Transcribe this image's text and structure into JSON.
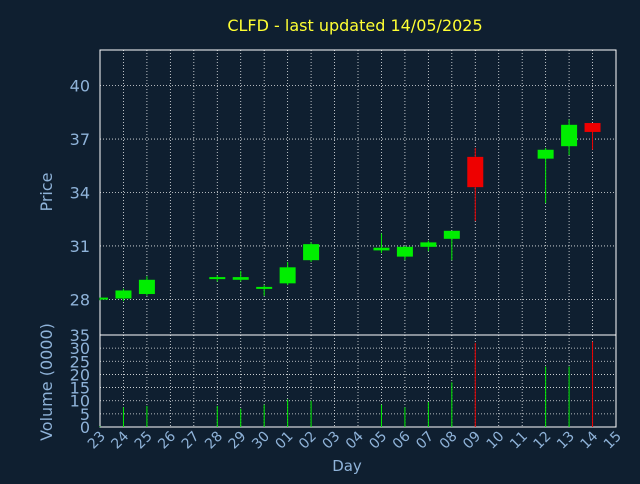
{
  "colors": {
    "background": "#0f1f30",
    "title": "#ffff33",
    "axis_text": "#8fb3d9",
    "axis_title": "#8fb3d9",
    "grid": "#ffffff",
    "up": "#00ee00",
    "down": "#ee0000"
  },
  "chart_data": [
    {
      "type": "candlestick",
      "title": "CLFD - last updated 14/05/2025",
      "ylabel": "Price",
      "ylim": [
        26.0,
        42.0
      ],
      "yticks": [
        28,
        31,
        34,
        37,
        40
      ],
      "grid": true,
      "candles": [
        {
          "day": "23",
          "open": 28.05,
          "high": 28.1,
          "low": 27.95,
          "close": 28.1
        },
        {
          "day": "24",
          "open": 28.05,
          "high": 28.6,
          "low": 27.9,
          "close": 28.5
        },
        {
          "day": "25",
          "open": 28.3,
          "high": 29.3,
          "low": 28.2,
          "close": 29.1
        },
        {
          "day": "28",
          "open": 29.15,
          "high": 29.35,
          "low": 29.0,
          "close": 29.25
        },
        {
          "day": "29",
          "open": 29.1,
          "high": 29.6,
          "low": 29.0,
          "close": 29.25
        },
        {
          "day": "30",
          "open": 28.6,
          "high": 28.8,
          "low": 28.2,
          "close": 28.7
        },
        {
          "day": "01",
          "open": 28.9,
          "high": 30.1,
          "low": 28.8,
          "close": 29.8
        },
        {
          "day": "02",
          "open": 30.2,
          "high": 31.2,
          "low": 30.1,
          "close": 31.1
        },
        {
          "day": "05",
          "open": 30.75,
          "high": 31.7,
          "low": 30.6,
          "close": 30.9
        },
        {
          "day": "06",
          "open": 30.4,
          "high": 31.0,
          "low": 30.2,
          "close": 30.95
        },
        {
          "day": "07",
          "open": 30.95,
          "high": 31.3,
          "low": 30.7,
          "close": 31.2
        },
        {
          "day": "08",
          "open": 31.4,
          "high": 31.8,
          "low": 30.2,
          "close": 31.85
        },
        {
          "day": "09",
          "open": 36.0,
          "high": 36.5,
          "low": 32.4,
          "close": 34.3
        },
        {
          "day": "12",
          "open": 35.9,
          "high": 36.5,
          "low": 33.4,
          "close": 36.4
        },
        {
          "day": "13",
          "open": 36.6,
          "high": 38.1,
          "low": 36.1,
          "close": 37.8
        },
        {
          "day": "14",
          "open": 37.9,
          "high": 37.9,
          "low": 36.4,
          "close": 37.4
        }
      ]
    },
    {
      "type": "bar",
      "ylabel": "Volume (0000)",
      "xlabel": "Day",
      "ylim": [
        0,
        35
      ],
      "yticks": [
        0,
        5,
        10,
        15,
        20,
        25,
        30,
        35
      ],
      "grid": true,
      "categories": [
        "23",
        "24",
        "25",
        "26",
        "27",
        "28",
        "29",
        "30",
        "01",
        "02",
        "03",
        "04",
        "05",
        "06",
        "07",
        "08",
        "09",
        "10",
        "11",
        "12",
        "13",
        "14",
        "15"
      ],
      "volumes": [
        {
          "day": "23",
          "value": 0.3,
          "direction": "up"
        },
        {
          "day": "24",
          "value": 7.5,
          "direction": "up"
        },
        {
          "day": "25",
          "value": 8.0,
          "direction": "up"
        },
        {
          "day": "28",
          "value": 8.0,
          "direction": "up"
        },
        {
          "day": "29",
          "value": 7.0,
          "direction": "up"
        },
        {
          "day": "30",
          "value": 8.5,
          "direction": "up"
        },
        {
          "day": "01",
          "value": 10.5,
          "direction": "up"
        },
        {
          "day": "02",
          "value": 10.0,
          "direction": "up"
        },
        {
          "day": "05",
          "value": 8.5,
          "direction": "up"
        },
        {
          "day": "06",
          "value": 7.5,
          "direction": "up"
        },
        {
          "day": "07",
          "value": 9.5,
          "direction": "up"
        },
        {
          "day": "08",
          "value": 17.0,
          "direction": "up"
        },
        {
          "day": "09",
          "value": 32.0,
          "direction": "down"
        },
        {
          "day": "12",
          "value": 23.0,
          "direction": "up"
        },
        {
          "day": "13",
          "value": 23.0,
          "direction": "up"
        },
        {
          "day": "14",
          "value": 32.5,
          "direction": "down"
        }
      ]
    }
  ]
}
